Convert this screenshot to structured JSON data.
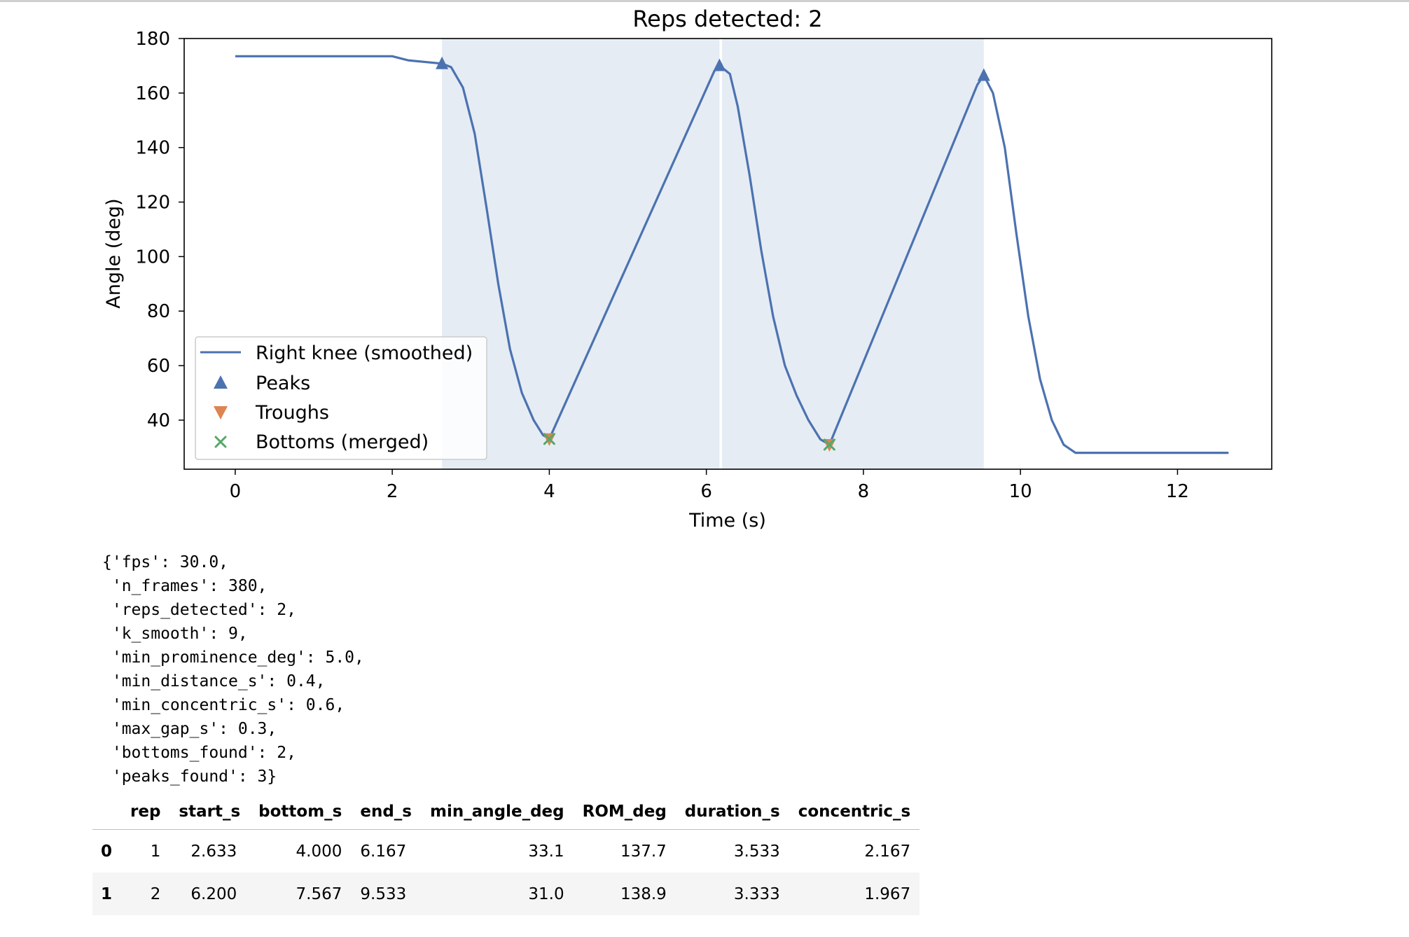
{
  "chart_data": {
    "type": "line",
    "title": "Reps detected: 2",
    "xlabel": "Time (s)",
    "ylabel": "Angle (deg)",
    "xlim": [
      -0.65,
      13.2
    ],
    "ylim": [
      22,
      180
    ],
    "xticks": [
      0,
      2,
      4,
      6,
      8,
      10,
      12
    ],
    "yticks": [
      40,
      60,
      80,
      100,
      120,
      140,
      160,
      180
    ],
    "grid": false,
    "legend": "lower-left",
    "series": [
      {
        "name": "Right knee (smoothed)",
        "color": "#4c72b0",
        "points": [
          [
            0,
            173.5
          ],
          [
            1.0,
            173.5
          ],
          [
            2.0,
            173.5
          ],
          [
            2.2,
            172
          ],
          [
            2.633,
            170.8
          ],
          [
            2.75,
            169.5
          ],
          [
            2.9,
            162
          ],
          [
            3.05,
            145
          ],
          [
            3.2,
            118
          ],
          [
            3.35,
            90
          ],
          [
            3.5,
            66
          ],
          [
            3.65,
            50
          ],
          [
            3.8,
            40
          ],
          [
            3.92,
            34.5
          ],
          [
            4.0,
            33.1
          ],
          [
            6.1,
            168
          ],
          [
            6.167,
            170.1
          ],
          [
            6.3,
            167
          ],
          [
            6.4,
            155
          ],
          [
            6.55,
            130
          ],
          [
            6.7,
            102
          ],
          [
            6.85,
            78
          ],
          [
            7.0,
            60
          ],
          [
            7.15,
            49
          ],
          [
            7.3,
            40
          ],
          [
            7.45,
            33
          ],
          [
            7.567,
            31.0
          ],
          [
            9.45,
            163
          ],
          [
            9.533,
            166.5
          ],
          [
            9.65,
            160
          ],
          [
            9.8,
            140
          ],
          [
            9.95,
            108
          ],
          [
            10.1,
            78
          ],
          [
            10.25,
            55
          ],
          [
            10.4,
            40
          ],
          [
            10.55,
            31
          ],
          [
            10.7,
            28
          ],
          [
            11.5,
            28
          ],
          [
            12.0,
            28
          ],
          [
            12.65,
            28
          ]
        ]
      },
      {
        "name": "Peaks",
        "color": "#4c72b0",
        "marker": "triangle-up",
        "points": [
          [
            2.633,
            170.8
          ],
          [
            6.167,
            170.1
          ],
          [
            9.533,
            166.5
          ]
        ]
      },
      {
        "name": "Troughs",
        "color": "#dd8452",
        "marker": "triangle-down",
        "points": [
          [
            4.0,
            33.1
          ],
          [
            7.567,
            31.0
          ]
        ]
      },
      {
        "name": "Bottoms (merged)",
        "color": "#55a868",
        "marker": "x",
        "points": [
          [
            4.0,
            33.1
          ],
          [
            7.567,
            31.0
          ]
        ]
      }
    ],
    "shaded_spans": [
      [
        2.633,
        6.167
      ],
      [
        6.2,
        9.533
      ]
    ],
    "shade_color": "#e5ecf4"
  },
  "printed_output": [
    "{'fps': 30.0,",
    " 'n_frames': 380,",
    " 'reps_detected': 2,",
    " 'k_smooth': 9,",
    " 'min_prominence_deg': 5.0,",
    " 'min_distance_s': 0.4,",
    " 'min_concentric_s': 0.6,",
    " 'max_gap_s': 0.3,",
    " 'bottoms_found': 2,",
    " 'peaks_found': 3}"
  ],
  "table": {
    "columns": [
      "rep",
      "start_s",
      "bottom_s",
      "end_s",
      "min_angle_deg",
      "ROM_deg",
      "duration_s",
      "concentric_s"
    ],
    "rows": [
      {
        "index": "0",
        "cells": [
          "1",
          "2.633",
          "4.000",
          "6.167",
          "33.1",
          "137.7",
          "3.533",
          "2.167"
        ]
      },
      {
        "index": "1",
        "cells": [
          "2",
          "6.200",
          "7.567",
          "9.533",
          "31.0",
          "138.9",
          "3.333",
          "1.967"
        ]
      }
    ]
  }
}
